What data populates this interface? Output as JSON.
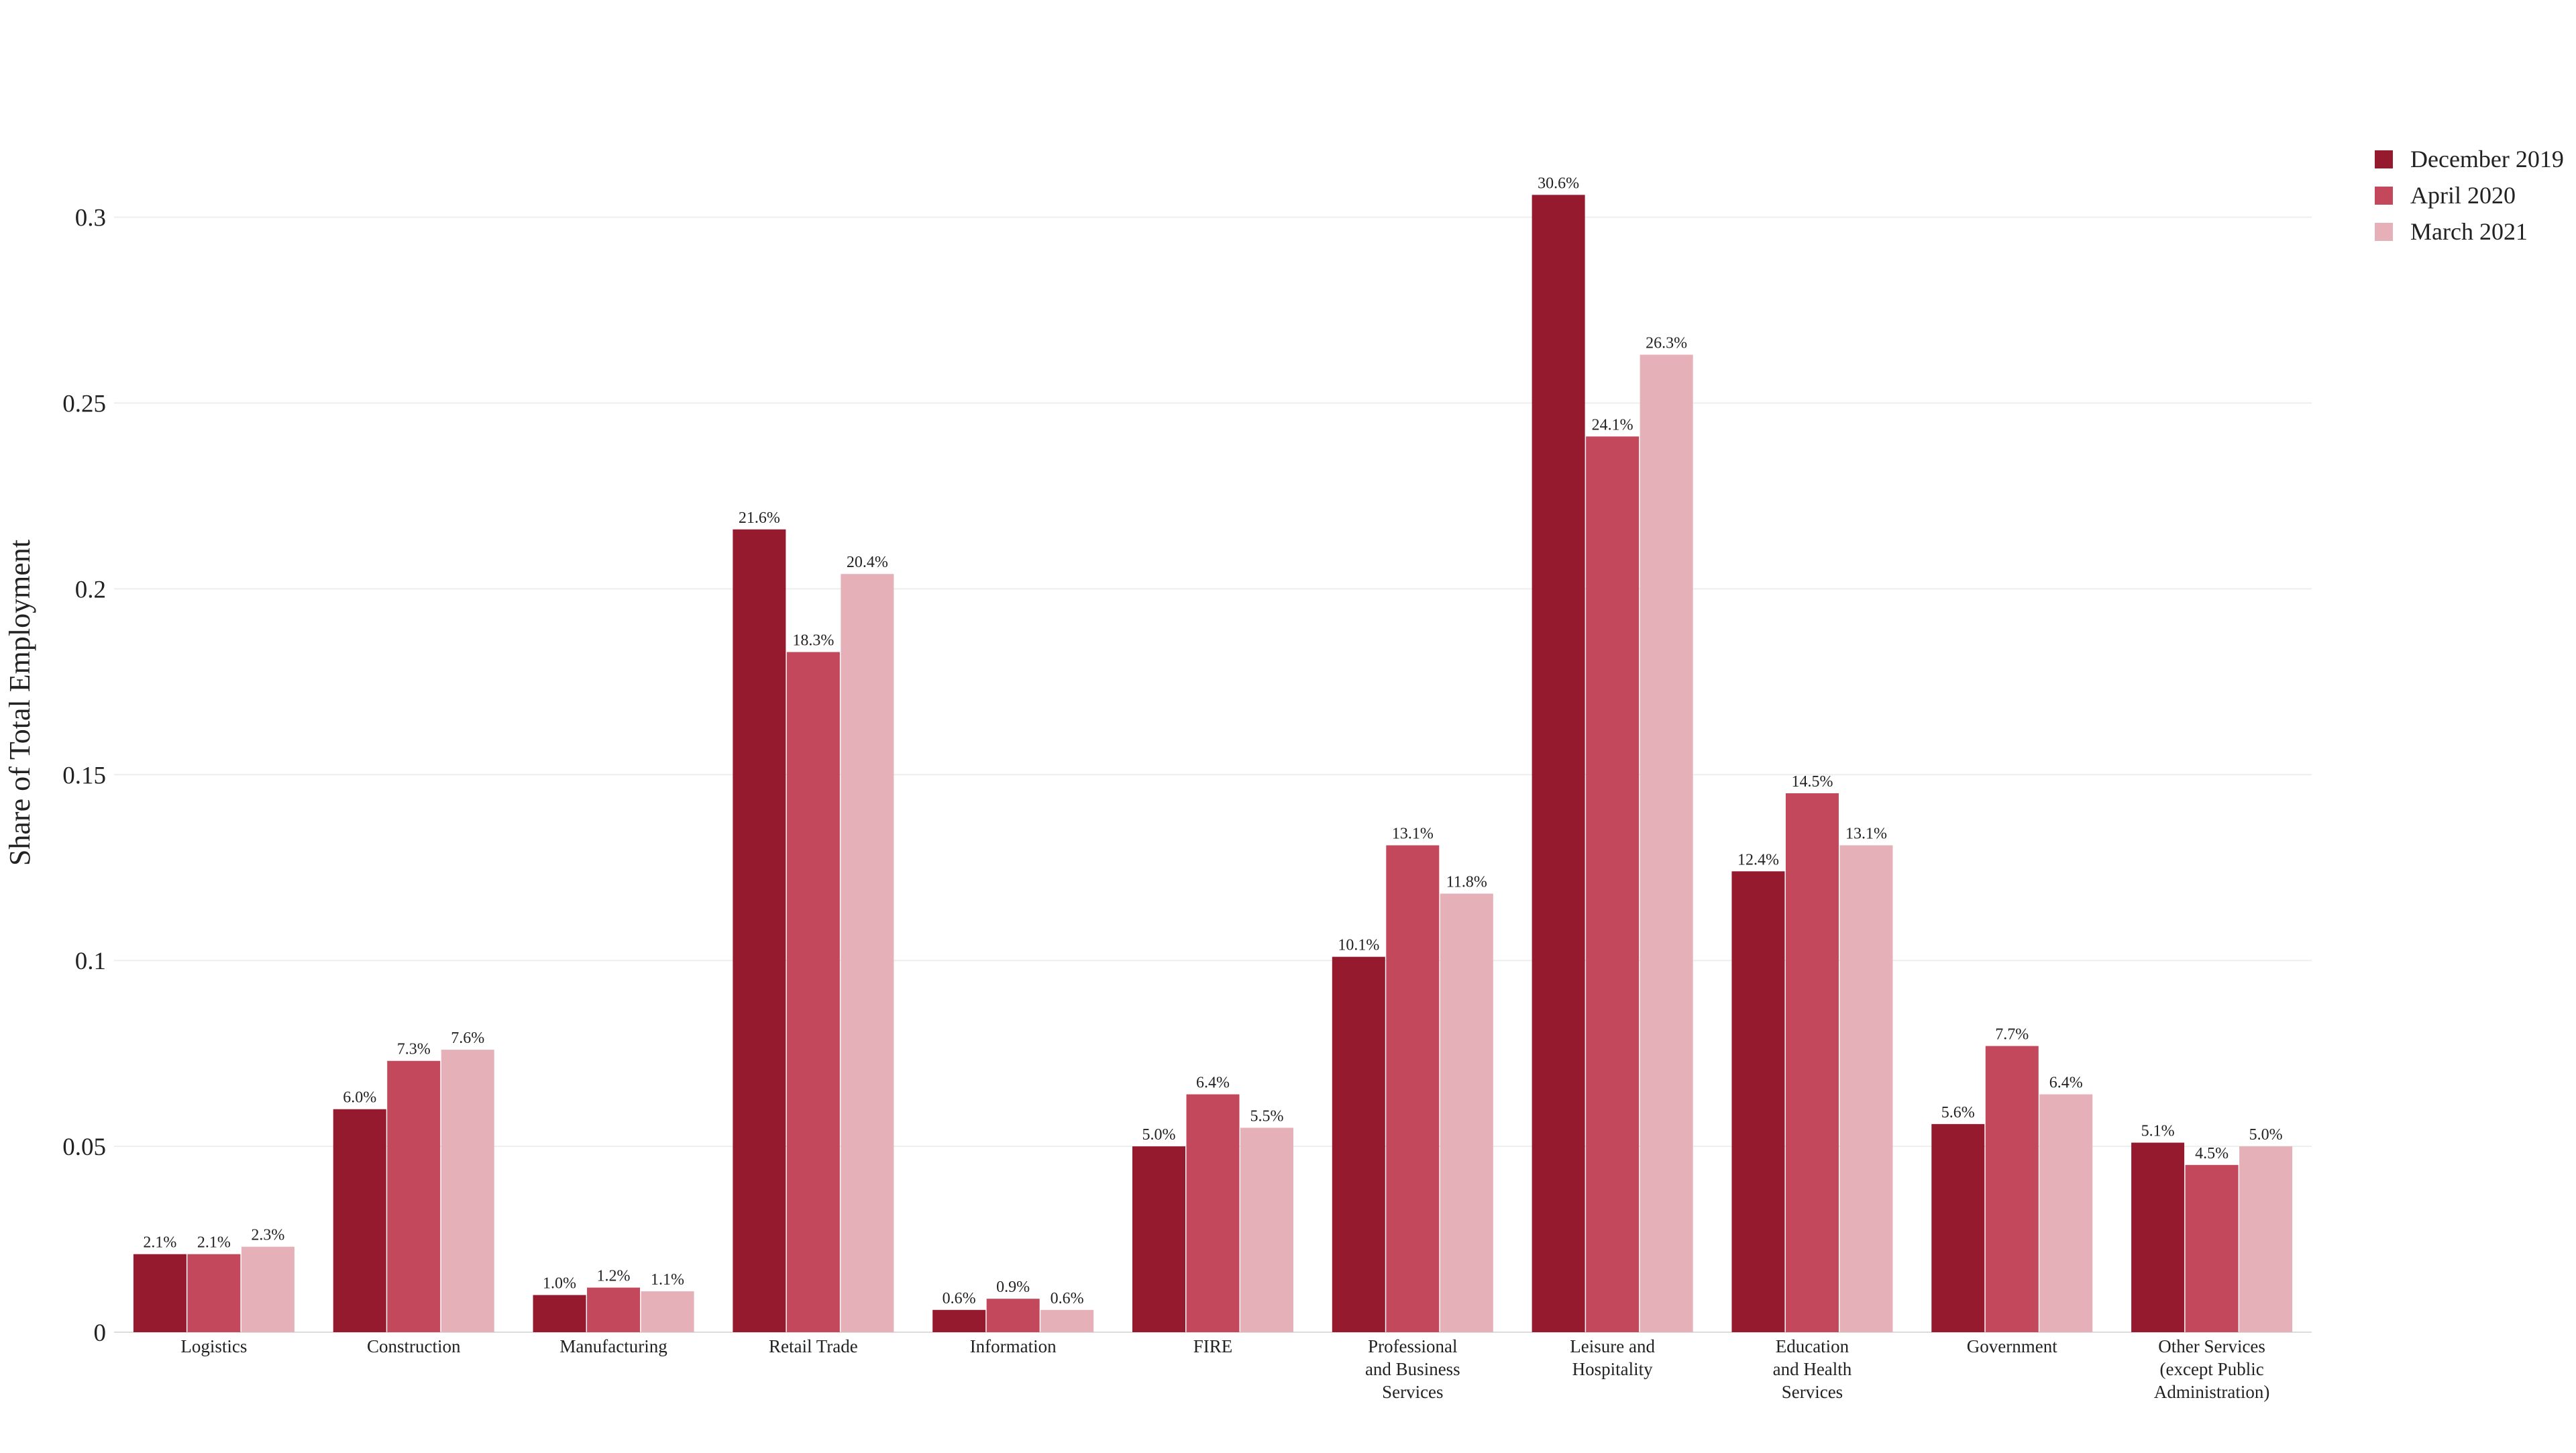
{
  "chart_data": {
    "type": "bar",
    "title": "",
    "xlabel": "",
    "ylabel": "Share of Total Employment",
    "ylim": [
      0,
      0.32
    ],
    "y_ticks": [
      0,
      0.05,
      0.1,
      0.15,
      0.2,
      0.25,
      0.3
    ],
    "y_tick_labels": [
      "0",
      "0.05",
      "0.1",
      "0.15",
      "0.2",
      "0.25",
      "0.3"
    ],
    "grid": true,
    "legend_position": "top-right",
    "categories": [
      [
        "Logistics"
      ],
      [
        "Construction"
      ],
      [
        "Manufacturing"
      ],
      [
        "Retail Trade"
      ],
      [
        "Information"
      ],
      [
        "FIRE"
      ],
      [
        "Professional",
        "and Business",
        "Services"
      ],
      [
        "Leisure and",
        "Hospitality"
      ],
      [
        "Education",
        "and Health",
        "Services"
      ],
      [
        "Government"
      ],
      [
        "Other Services",
        "(except Public",
        "Administration)"
      ]
    ],
    "series": [
      {
        "name": "December 2019",
        "color": "#961a2e",
        "values": [
          0.021,
          0.06,
          0.01,
          0.216,
          0.006,
          0.05,
          0.101,
          0.306,
          0.124,
          0.056,
          0.051
        ],
        "labels": [
          "2.1%",
          "6.0%",
          "1.0%",
          "21.6%",
          "0.6%",
          "5.0%",
          "10.1%",
          "30.6%",
          "12.4%",
          "5.6%",
          "5.1%"
        ]
      },
      {
        "name": "April 2020",
        "color": "#c4485c",
        "values": [
          0.021,
          0.073,
          0.012,
          0.183,
          0.009,
          0.064,
          0.131,
          0.241,
          0.145,
          0.077,
          0.045
        ],
        "labels": [
          "2.1%",
          "7.3%",
          "1.2%",
          "18.3%",
          "0.9%",
          "6.4%",
          "13.1%",
          "24.1%",
          "14.5%",
          "7.7%",
          "4.5%"
        ]
      },
      {
        "name": "March 2021",
        "color": "#e5b0b8",
        "values": [
          0.023,
          0.076,
          0.011,
          0.204,
          0.006,
          0.055,
          0.118,
          0.263,
          0.131,
          0.064,
          0.05
        ],
        "labels": [
          "2.3%",
          "7.6%",
          "1.1%",
          "20.4%",
          "0.6%",
          "5.5%",
          "11.8%",
          "26.3%",
          "13.1%",
          "6.4%",
          "5.0%"
        ]
      }
    ]
  }
}
